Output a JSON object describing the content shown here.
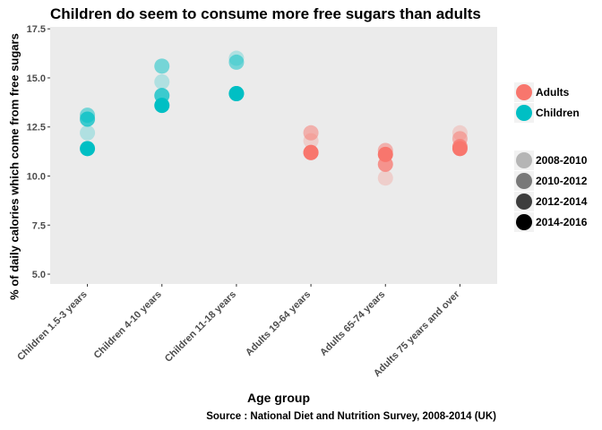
{
  "chart_data": {
    "type": "scatter",
    "title": "Children do seem to consume more free sugars than adults",
    "xlabel": "Age group",
    "ylabel": "% of daily calories which come from free sugars",
    "caption": "Source : National Diet and Nutrition Survey, 2008-2014 (UK)",
    "categories": [
      "Children 1.5-3 years",
      "Children 4-10 years",
      "Children 11-18 years",
      "Adults 19-64 years",
      "Adults 65-74 years",
      "Adults 75 years and over"
    ],
    "group_of_category": [
      "Children",
      "Children",
      "Children",
      "Adults",
      "Adults",
      "Adults"
    ],
    "ylim": [
      4.5,
      17.6
    ],
    "yticks": [
      5.0,
      7.5,
      10.0,
      12.5,
      15.0,
      17.5
    ],
    "ytick_labels": [
      "5.0",
      "7.5",
      "10.0",
      "12.5",
      "15.0",
      "17.5"
    ],
    "grid": false,
    "panel_background": "#ebebeb",
    "series": [
      {
        "name": "2008-2010",
        "alpha": 0.25,
        "values": [
          12.2,
          14.8,
          16.0,
          11.8,
          9.9,
          12.2
        ]
      },
      {
        "name": "2010-2012",
        "alpha": 0.5,
        "values": [
          13.1,
          15.6,
          15.8,
          12.2,
          11.3,
          11.9
        ]
      },
      {
        "name": "2012-2014",
        "alpha": 0.75,
        "values": [
          12.9,
          14.1,
          14.2,
          11.2,
          10.6,
          11.5
        ]
      },
      {
        "name": "2014-2016",
        "alpha": 1.0,
        "values": [
          11.4,
          13.6,
          14.2,
          11.2,
          11.1,
          11.4
        ]
      }
    ],
    "legend": {
      "placement": "right",
      "color_entries": [
        {
          "label": "Adults",
          "color": "#f8766d"
        },
        {
          "label": "Children",
          "color": "#00bfc4"
        }
      ],
      "alpha_entries": [
        {
          "label": "2008-2010",
          "alpha": 0.25
        },
        {
          "label": "2010-2012",
          "alpha": 0.5
        },
        {
          "label": "2012-2014",
          "alpha": 0.75
        },
        {
          "label": "2014-2016",
          "alpha": 1.0
        }
      ]
    },
    "colors": {
      "Adults": "#f8766d",
      "Children": "#00bfc4"
    }
  }
}
